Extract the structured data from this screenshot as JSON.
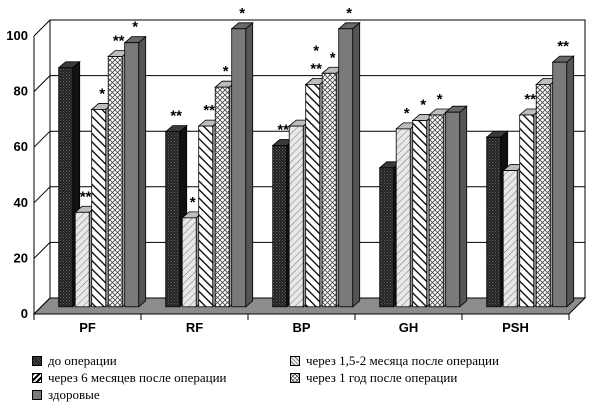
{
  "chart_data": {
    "type": "bar",
    "categories": [
      "PF",
      "RF",
      "BP",
      "GH",
      "PSH"
    ],
    "series": [
      {
        "name": "до операции",
        "values": [
          86,
          63,
          58,
          50,
          61
        ],
        "fill": "#1a1a1a",
        "pattern": "dots-dark"
      },
      {
        "name": "через 1,5-2 месяца после операции",
        "values": [
          34,
          32,
          65,
          64,
          49
        ],
        "fill": "#d0d0d0",
        "pattern": "diag-light"
      },
      {
        "name": "через 6 месяцев после операции",
        "values": [
          71,
          65,
          80,
          67,
          69
        ],
        "fill": "#ffffff",
        "pattern": "diag-bold"
      },
      {
        "name": "через 1 год после операции",
        "values": [
          90,
          79,
          84,
          69,
          80
        ],
        "fill": "#ffffff",
        "pattern": "crosshatch"
      },
      {
        "name": "здоровые",
        "values": [
          95,
          100,
          100,
          70,
          88
        ],
        "fill": "#7a7a7a",
        "pattern": "solid"
      }
    ],
    "annotations": [
      {
        "category": "PF",
        "series": 1,
        "text": "**"
      },
      {
        "category": "PF",
        "series": 2,
        "text": "*"
      },
      {
        "category": "PF",
        "series": 3,
        "text": "**"
      },
      {
        "category": "PF",
        "series": 4,
        "text": "*"
      },
      {
        "category": "RF",
        "series": 0,
        "text": "**"
      },
      {
        "category": "RF",
        "series": 1,
        "text": "*"
      },
      {
        "category": "RF",
        "series": 2,
        "text": "**"
      },
      {
        "category": "RF",
        "series": 3,
        "text": "*"
      },
      {
        "category": "RF",
        "series": 4,
        "text": "*"
      },
      {
        "category": "BP",
        "series": 0,
        "text": "**"
      },
      {
        "category": "BP",
        "series": 2,
        "text": "**"
      },
      {
        "category": "BP",
        "series": 2,
        "text": "*"
      },
      {
        "category": "BP",
        "series": 3,
        "text": "*"
      },
      {
        "category": "BP",
        "series": 4,
        "text": "*"
      },
      {
        "category": "GH",
        "series": 1,
        "text": "*"
      },
      {
        "category": "GH",
        "series": 2,
        "text": "*"
      },
      {
        "category": "GH",
        "series": 3,
        "text": "*"
      },
      {
        "category": "PSH",
        "series": 2,
        "text": "**"
      },
      {
        "category": "PSH",
        "series": 4,
        "text": "**"
      }
    ],
    "ylim": [
      0,
      100
    ],
    "yticks": [
      "0",
      "20",
      "40",
      "60",
      "80",
      "100"
    ],
    "grid": true,
    "legend_position": "bottom",
    "title": "",
    "xlabel": "",
    "ylabel": ""
  }
}
